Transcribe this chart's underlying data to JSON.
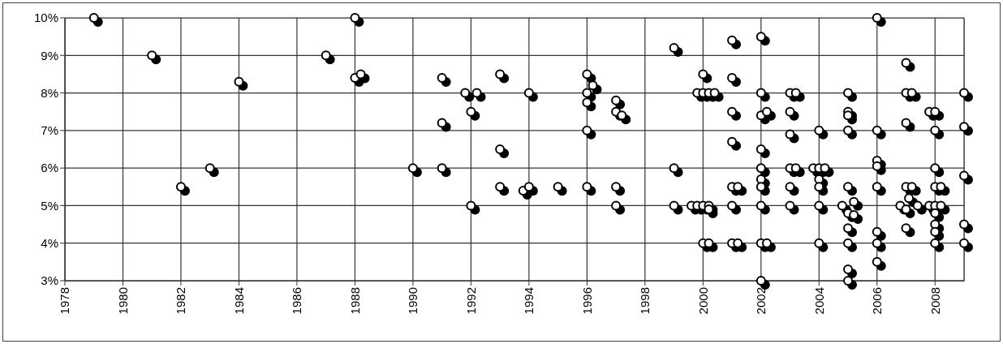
{
  "chart_data": {
    "type": "scatter",
    "x": [
      1979,
      1981,
      1982,
      1983,
      1984,
      1987,
      1988,
      1988,
      1988.2,
      1990,
      1991,
      1991,
      1991,
      1991.8,
      1992,
      1992,
      1992.2,
      1993,
      1993,
      1993,
      1993.8,
      1994,
      1994,
      1995,
      1996,
      1996.2,
      1996,
      1996,
      1996,
      1996,
      1997,
      1997,
      1997.2,
      1997,
      1997,
      1999,
      1999,
      1999,
      1999.6,
      1999.8,
      1999.8,
      2000,
      2000,
      2000,
      2000,
      2000.2,
      2000.2,
      2000.2,
      2000.2,
      2000.4,
      2001,
      2001,
      2001,
      2001,
      2001,
      2001,
      2001,
      2001.2,
      2001.2,
      2002,
      2002,
      2002,
      2002.2,
      2002,
      2002,
      2002,
      2002,
      2002,
      2002,
      2002.2,
      2002,
      2003,
      2003.2,
      2003,
      2003,
      2003,
      2003.2,
      2003,
      2003,
      2003.8,
      2004,
      2004,
      2004,
      2004,
      2004,
      2004,
      2004.2,
      2004.8,
      2005,
      2005,
      2005,
      2005,
      2005,
      2005,
      2005,
      2005,
      2005,
      2005,
      2005.2,
      2005.2,
      2006,
      2006,
      2006,
      2006,
      2006,
      2006,
      2006,
      2006,
      2006.8,
      2007,
      2007,
      2007,
      2007,
      2007,
      2007,
      2007.1,
      2007.2,
      2007.2,
      2007.4,
      2007.8,
      2007.8,
      2008,
      2008,
      2008,
      2008,
      2008,
      2008,
      2008,
      2008,
      2008,
      2008.2,
      2008.2,
      2009,
      2009,
      2009,
      2009,
      2009
    ],
    "values": [
      10,
      9,
      5.5,
      6,
      8.3,
      9,
      10,
      8.4,
      8.5,
      6,
      8.4,
      7.2,
      6,
      8,
      7.5,
      5,
      8,
      8.5,
      6.5,
      5.5,
      5.4,
      8,
      5.5,
      5.5,
      8.5,
      8.2,
      8,
      7.75,
      7,
      5.5,
      7.8,
      7.5,
      7.4,
      5.5,
      5,
      9.2,
      6,
      5,
      5,
      8,
      5,
      8.5,
      8,
      5,
      4,
      8,
      5,
      4.9,
      4,
      8,
      9.4,
      8.4,
      7.5,
      6.7,
      5.5,
      5,
      4,
      5.5,
      4,
      9.5,
      8,
      7.4,
      7.5,
      6.5,
      6,
      5.7,
      5.5,
      5,
      4,
      4,
      3,
      8,
      8,
      7.5,
      6.9,
      6,
      6,
      5.5,
      5,
      6,
      7,
      6,
      5.7,
      5.5,
      5,
      4,
      6,
      5,
      8,
      7.5,
      7.4,
      7,
      5.5,
      4.8,
      4.4,
      4,
      3.3,
      3,
      5.1,
      4.75,
      10,
      7,
      6.2,
      6.05,
      5.5,
      4.3,
      4,
      3.5,
      5,
      8.8,
      8,
      7.2,
      5.5,
      4.9,
      4.4,
      5.2,
      8,
      5.5,
      5,
      7.5,
      5,
      7.5,
      7,
      6,
      5.5,
      5,
      4.8,
      4.5,
      4.3,
      4,
      5.5,
      5,
      8,
      7.1,
      5.8,
      4.5,
      4
    ],
    "color": "#ffffff",
    "marker": "circle",
    "xlim": [
      1978,
      2009
    ],
    "xticks": [
      1978,
      1980,
      1982,
      1984,
      1986,
      1988,
      1990,
      1992,
      1994,
      1996,
      1998,
      2000,
      2002,
      2004,
      2006,
      2008
    ],
    "ylim": [
      3,
      10
    ],
    "yticks": [
      {
        "value": 3,
        "label": "3%"
      },
      {
        "value": 4,
        "label": "4%"
      },
      {
        "value": 5,
        "label": "5%"
      },
      {
        "value": 6,
        "label": "6%"
      },
      {
        "value": 7,
        "label": "7%"
      },
      {
        "value": 8,
        "label": "8%"
      },
      {
        "value": 9,
        "label": "9%"
      },
      {
        "value": 10,
        "label": "10%"
      }
    ],
    "grid": true
  }
}
